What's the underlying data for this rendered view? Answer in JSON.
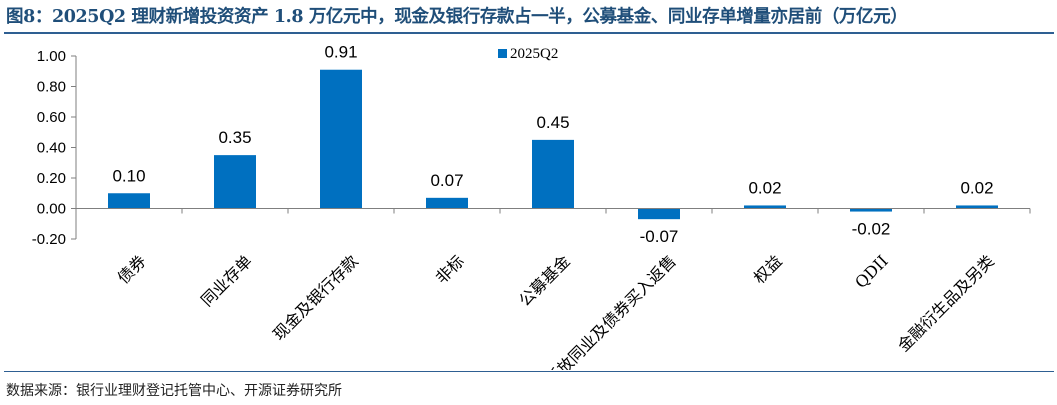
{
  "figure": {
    "title": "图8：2025Q2 理财新增投资资产 1.8 万亿元中，现金及银行存款占一半，公募基金、同业存单增量亦居前（万亿元）",
    "source": "数据来源：银行业理财登记托管中心、开源证券研究所"
  },
  "chart_data": {
    "type": "bar",
    "categories": [
      "债券",
      "同业存单",
      "现金及银行存款",
      "非标",
      "公募基金",
      "折放同业及债券买入返售",
      "权益",
      "QDII",
      "金融衍生品及另类"
    ],
    "series": [
      {
        "name": "2025Q2",
        "values": [
          0.1,
          0.35,
          0.91,
          0.07,
          0.45,
          -0.07,
          0.02,
          -0.02,
          0.02
        ]
      }
    ],
    "data_labels": [
      "0.10",
      "0.35",
      "0.91",
      "0.07",
      "0.45",
      "-0.07",
      "0.02",
      "-0.02",
      "0.02"
    ],
    "ylim": [
      -0.2,
      1.0
    ],
    "yticks": [
      -0.2,
      0.0,
      0.2,
      0.4,
      0.6,
      0.8,
      1.0
    ],
    "ytick_labels": [
      "-0.20",
      "0.00",
      "0.20",
      "0.40",
      "0.60",
      "0.80",
      "1.00"
    ],
    "legend_position": "top-center",
    "grid": false,
    "colors": {
      "bar": "#0070c0",
      "title": "#1f4e79",
      "rule": "#2e5f92"
    }
  }
}
